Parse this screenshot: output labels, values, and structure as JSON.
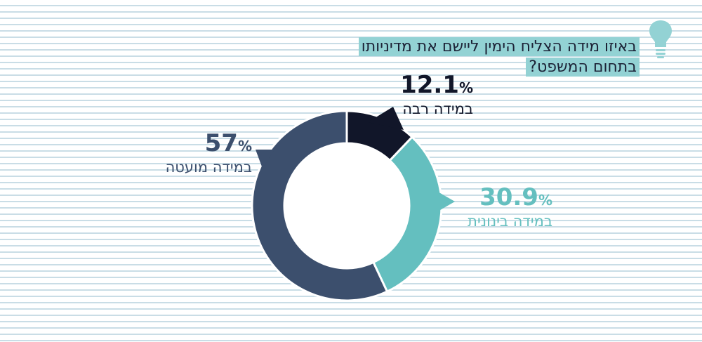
{
  "title_lines": [
    "באיזו מידה הצליח הימין ליישם את מדיניותו",
    "בתחום המשפט?"
  ],
  "icon": "lightbulb-icon",
  "colors": {
    "dark": "#111629",
    "teal": "#64bfbf",
    "slate": "#3c4f6d",
    "highlight": "#93d2d4",
    "bulb": "#93d2d4"
  },
  "chart_data": {
    "type": "pie",
    "donut": true,
    "unit": "%",
    "slices": [
      {
        "label": "במידה רבה",
        "value": 12.1,
        "display": "12.1",
        "color": "#111629"
      },
      {
        "label": "במידה בינונית",
        "value": 30.9,
        "display": "30.9",
        "color": "#64bfbf"
      },
      {
        "label": "במידה מועטה",
        "value": 57,
        "display": "57",
        "color": "#3c4f6d"
      }
    ]
  }
}
